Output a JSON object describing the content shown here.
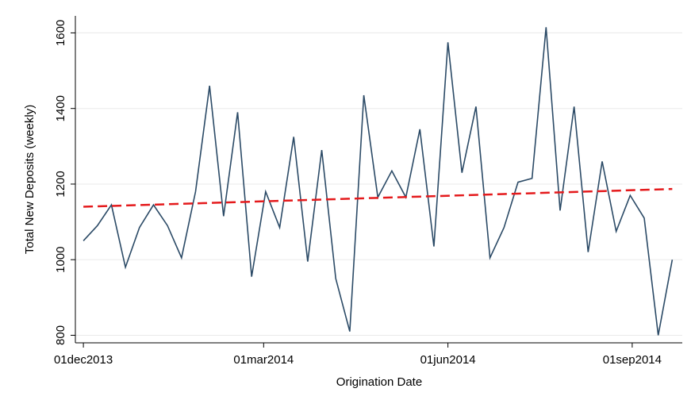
{
  "chart_data": {
    "type": "line",
    "y_label": "Total New Deposits (weekly)",
    "x_label": "Origination Date",
    "x": [
      "2013-12-01",
      "2013-12-08",
      "2013-12-15",
      "2013-12-22",
      "2013-12-29",
      "2014-01-05",
      "2014-01-12",
      "2014-01-19",
      "2014-01-26",
      "2014-02-02",
      "2014-02-09",
      "2014-02-16",
      "2014-02-23",
      "2014-03-02",
      "2014-03-09",
      "2014-03-16",
      "2014-03-23",
      "2014-03-30",
      "2014-04-06",
      "2014-04-13",
      "2014-04-20",
      "2014-04-27",
      "2014-05-04",
      "2014-05-11",
      "2014-05-18",
      "2014-05-25",
      "2014-06-01",
      "2014-06-08",
      "2014-06-15",
      "2014-06-22",
      "2014-06-29",
      "2014-07-06",
      "2014-07-13",
      "2014-07-20",
      "2014-07-27",
      "2014-08-03",
      "2014-08-10",
      "2014-08-17",
      "2014-08-24",
      "2014-08-31",
      "2014-09-07",
      "2014-09-14",
      "2014-09-21"
    ],
    "series": [
      {
        "color": "#2b4a66",
        "values": [
          1050,
          1090,
          1145,
          980,
          1085,
          1145,
          1090,
          1005,
          1180,
          1460,
          1115,
          1390,
          955,
          1180,
          1085,
          1325,
          995,
          1290,
          950,
          810,
          1435,
          1165,
          1235,
          1165,
          1345,
          1035,
          1575,
          1230,
          1405,
          1005,
          1085,
          1205,
          1215,
          1615,
          1130,
          1405,
          1020,
          1260,
          1075,
          1170,
          1110,
          800,
          1000
        ]
      }
    ],
    "trend": {
      "color": "#e41a1c",
      "x": [
        "2013-12-01",
        "2014-09-21"
      ],
      "values": [
        1140,
        1187
      ]
    },
    "xlim": [
      "2013-11-27",
      "2014-09-26"
    ],
    "xticks": [
      {
        "value": "2013-12-01",
        "label": "01dec2013"
      },
      {
        "value": "2014-03-01",
        "label": "01mar2014"
      },
      {
        "value": "2014-06-01",
        "label": "01jun2014"
      },
      {
        "value": "2014-09-01",
        "label": "01sep2014"
      }
    ],
    "ylim": [
      780,
      1645
    ],
    "yticks": [
      800,
      1000,
      1200,
      1400,
      1600
    ],
    "grid": true
  }
}
